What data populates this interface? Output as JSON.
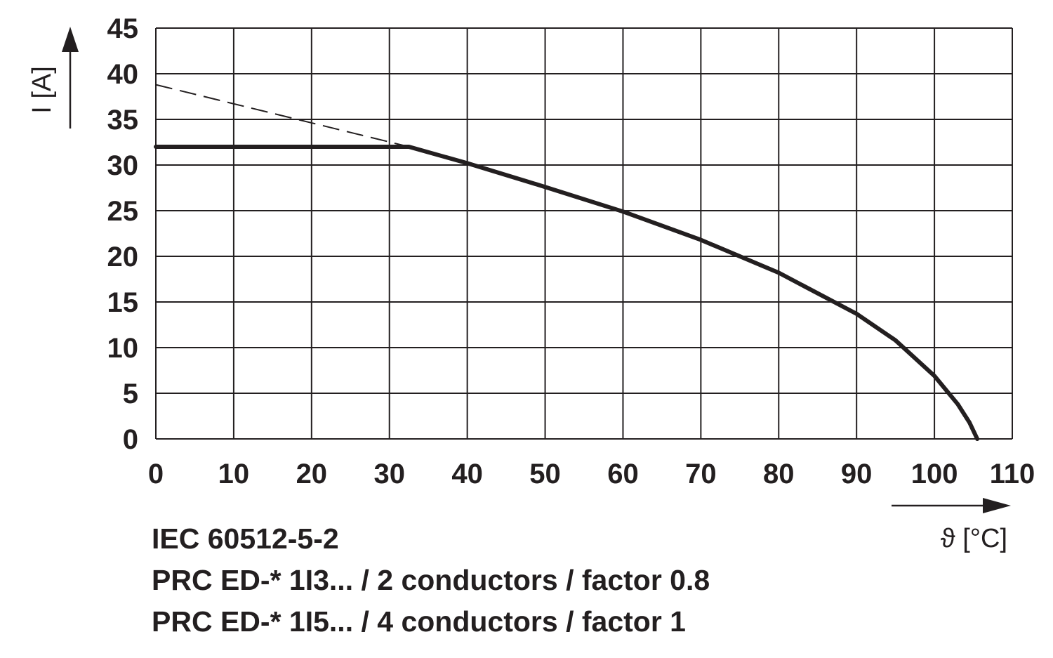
{
  "chart_data": {
    "type": "line",
    "xlabel": "ϑ [°C]",
    "ylabel": "I [A]",
    "xlim": [
      0,
      110
    ],
    "ylim": [
      0,
      45
    ],
    "x_ticks": [
      "0",
      "10",
      "20",
      "30",
      "40",
      "50",
      "60",
      "70",
      "80",
      "90",
      "100",
      "110"
    ],
    "y_ticks": [
      "0",
      "5",
      "10",
      "15",
      "20",
      "25",
      "30",
      "35",
      "40",
      "45"
    ],
    "grid": true,
    "line_color": "#231f20",
    "series": [
      {
        "style": "solid",
        "x": [
          0,
          32.5,
          40,
          50,
          60,
          70,
          80,
          90,
          95,
          100,
          103,
          104.5,
          105.5
        ],
        "y": [
          32,
          32,
          30.2,
          27.6,
          24.9,
          21.8,
          18.2,
          13.7,
          10.8,
          6.9,
          3.8,
          1.8,
          0
        ]
      },
      {
        "style": "dashed",
        "x": [
          0,
          32.5
        ],
        "y": [
          38.8,
          32
        ]
      }
    ],
    "notes": [
      "IEC 60512-5-2",
      "PRC ED-* 1I3... / 2 conductors / factor 0.8",
      "PRC ED-* 1I5... / 4 conductors / factor 1"
    ]
  }
}
